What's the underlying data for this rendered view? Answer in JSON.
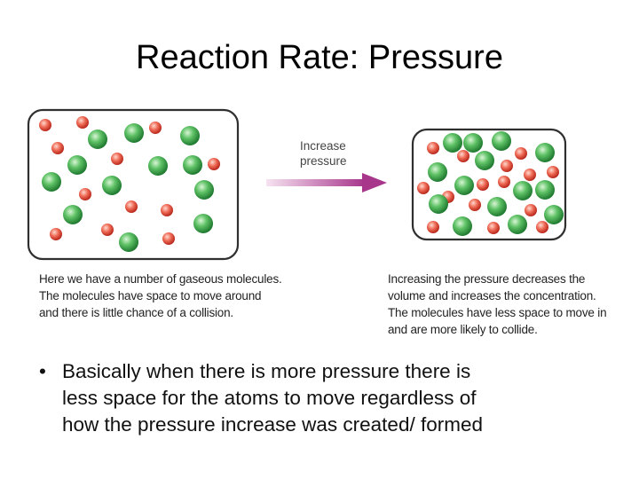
{
  "slide": {
    "title": "Reaction Rate: Pressure"
  },
  "diagram": {
    "arrow_label": [
      "Increase",
      "pressure"
    ],
    "left_caption": [
      "Here we have a number of gaseous molecules.",
      "The molecules have space to move around",
      "and there is little chance of a collision."
    ],
    "right_caption": [
      "Increasing the pressure decreases the",
      "volume and increases the concentration.",
      "The molecules have less space to move in",
      "and are more likely to collide."
    ],
    "colors": {
      "large_molecule": "#3aa54a",
      "small_molecule": "#e8453c",
      "arrow": "#b04a9a",
      "container_border": "#333333"
    }
  },
  "bullets": [
    {
      "lines": [
        "Basically when there is more pressure there is",
        "less space for the atoms to move regardless of",
        "how the pressure increase was created/ formed"
      ]
    }
  ]
}
